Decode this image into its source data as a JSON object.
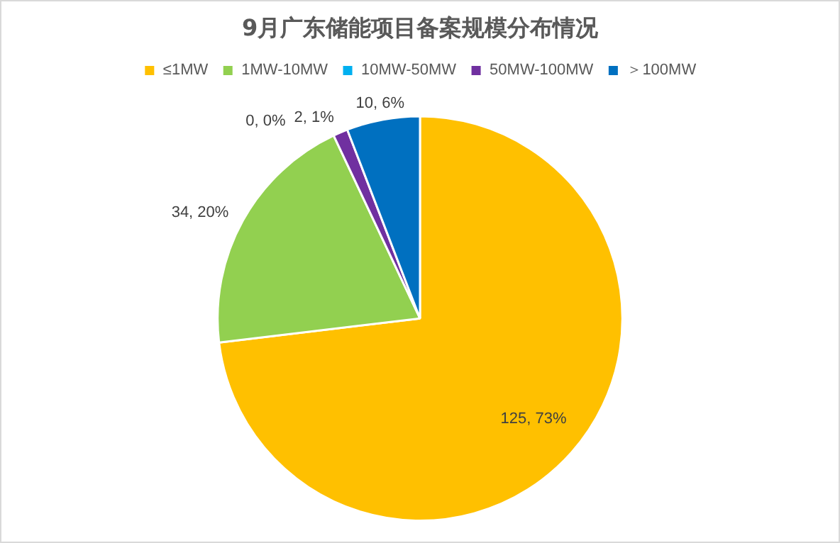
{
  "chart_data": {
    "type": "pie",
    "title": "9月广东储能项目备案规模分布情况",
    "categories": [
      "≤1MW",
      "1MW-10MW",
      "10MW-50MW",
      "50MW-100MW",
      "＞100MW"
    ],
    "values": [
      125,
      34,
      0,
      2,
      10
    ],
    "value_labels": [
      "125, 73%",
      "34, 20%",
      "0, 0%",
      "2, 1%",
      "10, 6%"
    ],
    "colors": [
      "#ffc000",
      "#92d050",
      "#00b0f0",
      "#7030a0",
      "#0070c0"
    ],
    "legend": "top"
  }
}
